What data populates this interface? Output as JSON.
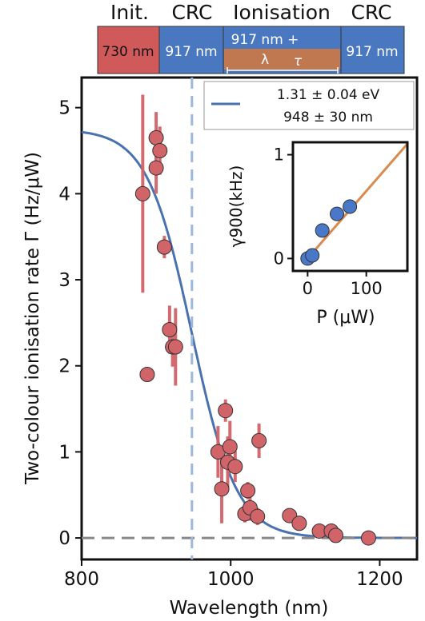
{
  "pulse_sequence": {
    "headers": [
      "Init.",
      "CRC",
      "Ionisation",
      "CRC"
    ],
    "blocks": [
      {
        "label": "730 nm",
        "color": "#d05a5a"
      },
      {
        "label": "917 nm",
        "color": "#4a78c0"
      },
      {
        "label": "917 nm +",
        "color": "#4a78c0"
      },
      {
        "label": "917 nm",
        "color": "#4a78c0"
      }
    ],
    "ionisation_sub": {
      "lambda_label": "λ",
      "tau_label": "τ",
      "color": "#c07850"
    }
  },
  "chart_data": {
    "type": "scatter",
    "xlabel": "Wavelength (nm)",
    "ylabel": "Two-colour ionisation rate Γ (Hz/μW)",
    "xlim": [
      800,
      1250
    ],
    "ylim": [
      -0.25,
      5.35
    ],
    "xticks": [
      800,
      1000,
      1200
    ],
    "yticks": [
      0,
      1,
      2,
      3,
      4,
      5
    ],
    "grid": false,
    "vline_x": 948,
    "hline_y": 0,
    "legend": {
      "position": "top-right",
      "line1": "1.31 ± 0.04 eV",
      "line2": "948 ± 30 nm"
    },
    "fit": {
      "type": "sigmoid",
      "color": "#4a72b0",
      "amplitude": 4.75,
      "center": 948,
      "width": 30
    },
    "series": [
      {
        "color": "#d06468",
        "x": [
          882,
          888,
          900,
          900,
          905,
          911,
          918,
          922,
          926,
          983,
          988,
          993,
          996,
          999,
          1006,
          1019,
          1023,
          1026,
          1036,
          1038,
          1079,
          1092,
          1119,
          1135,
          1141,
          1185
        ],
        "y": [
          4.0,
          1.9,
          4.65,
          4.3,
          4.5,
          3.38,
          2.42,
          2.22,
          2.22,
          1.0,
          0.57,
          1.48,
          0.88,
          1.06,
          0.83,
          0.28,
          0.55,
          0.35,
          0.25,
          1.13,
          0.26,
          0.17,
          0.08,
          0.08,
          0.03,
          0.0
        ],
        "err": [
          1.15,
          0.05,
          0.3,
          0.3,
          0.28,
          0.13,
          0.28,
          0.23,
          0.45,
          0.3,
          0.4,
          0.13,
          0.3,
          0.3,
          0.18,
          0.1,
          0.1,
          0.15,
          0.1,
          0.2,
          0.05,
          0.05,
          0.05,
          0.05,
          0.05,
          0.05
        ]
      }
    ],
    "inset": {
      "xlabel": "P (μW)",
      "ylabel": "γ900(kHz)",
      "xlim": [
        -25,
        170
      ],
      "ylim": [
        -0.12,
        1.12
      ],
      "xticks": [
        0,
        100
      ],
      "yticks": [
        0,
        1
      ],
      "line": {
        "slope": 0.0065,
        "intercept": 0.0,
        "color": "#d98a50"
      },
      "points": {
        "color": "#4a78c8",
        "x": [
          0,
          8,
          25,
          50,
          72
        ],
        "y": [
          0.0,
          0.03,
          0.27,
          0.43,
          0.5
        ],
        "err": [
          0.02,
          0.02,
          0.05,
          0.06,
          0.07
        ]
      }
    }
  }
}
